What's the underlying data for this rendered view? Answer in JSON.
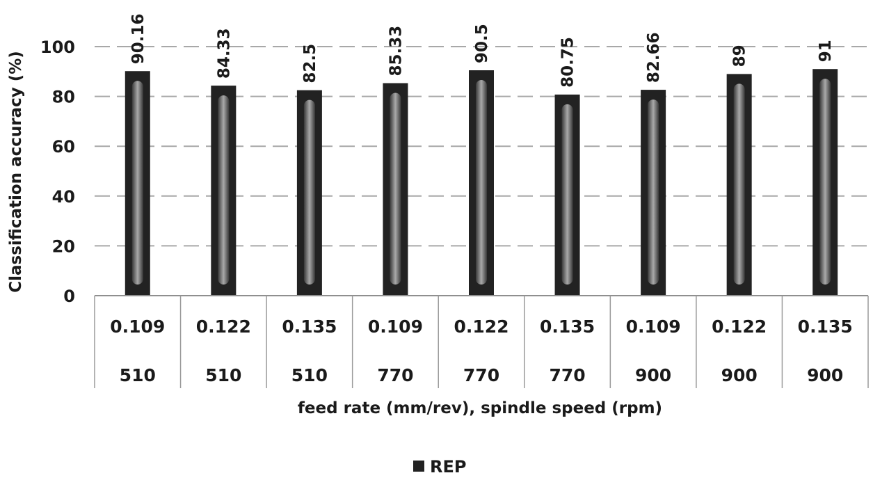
{
  "chart_data": {
    "type": "bar",
    "title": "",
    "xlabel": "feed rate (mm/rev), spindle speed (rpm)",
    "ylabel": "Classification accuracy (%)",
    "ylim": [
      0,
      100
    ],
    "yticks": [
      0,
      20,
      40,
      60,
      80,
      100
    ],
    "grid": "horizontal dashed",
    "categories": [
      {
        "feed_rate": "0.109",
        "spindle_speed": "510"
      },
      {
        "feed_rate": "0.122",
        "spindle_speed": "510"
      },
      {
        "feed_rate": "0.135",
        "spindle_speed": "510"
      },
      {
        "feed_rate": "0.109",
        "spindle_speed": "770"
      },
      {
        "feed_rate": "0.122",
        "spindle_speed": "770"
      },
      {
        "feed_rate": "0.135",
        "spindle_speed": "770"
      },
      {
        "feed_rate": "0.109",
        "spindle_speed": "900"
      },
      {
        "feed_rate": "0.122",
        "spindle_speed": "900"
      },
      {
        "feed_rate": "0.135",
        "spindle_speed": "900"
      }
    ],
    "series": [
      {
        "name": "REP",
        "values": [
          90.16,
          84.33,
          82.5,
          85.33,
          90.5,
          80.75,
          82.66,
          89,
          91
        ],
        "labels": [
          "90.16",
          "84.33",
          "82.5",
          "85.33",
          "90.5",
          "80.75",
          "82.66",
          "89",
          "91"
        ],
        "color": "#222222"
      }
    ],
    "legend": "bottom-center"
  }
}
